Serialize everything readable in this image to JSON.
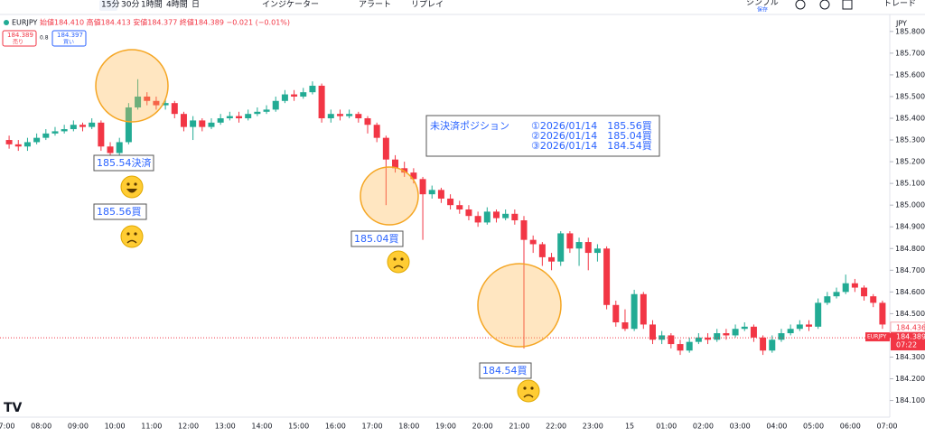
{
  "toolbar": {
    "timeframes": [
      "15分",
      "30分",
      "1時間",
      "4時間",
      "日"
    ],
    "indicators": "インジケーター",
    "alert": "アラート",
    "replay": "リプレイ",
    "layout": "シンプル",
    "save": "保存",
    "trade": "トレード"
  },
  "header": {
    "symbol": "EURJPY",
    "ohlc": "始値184.410 高値184.413 安値184.377 終値184.389 −0.021 (−0.01%)",
    "sell_price": "184.389",
    "sell": "売り",
    "spread": "0.8",
    "buy_price": "184.397",
    "buy": "買い"
  },
  "annotations": {
    "close1": "185.54決済",
    "buy1": "185.56買",
    "buy2": "185.04買",
    "buy3": "184.54買",
    "position_title": "未決済ポジション",
    "positions": [
      "①2026/01/14　185.56買",
      "②2026/01/14　185.04買",
      "③2026/01/14　184.54買"
    ]
  },
  "chart_data": {
    "type": "candlestick",
    "currency": "JPY",
    "up_color": "#22ab94",
    "down_color": "#f23645",
    "ylim": [
      184.04,
      185.87
    ],
    "yticks": [
      {
        "value": 184.1,
        "label": "184.100"
      },
      {
        "value": 184.2,
        "label": "184.200"
      },
      {
        "value": 184.3,
        "label": "184.300"
      },
      {
        "value": 184.4,
        "label": "184.400"
      },
      {
        "value": 184.5,
        "label": "184.500"
      },
      {
        "value": 184.6,
        "label": "184.600"
      },
      {
        "value": 184.7,
        "label": "184.700"
      },
      {
        "value": 184.8,
        "label": "184.800"
      },
      {
        "value": 184.9,
        "label": "184.900"
      },
      {
        "value": 185.0,
        "label": "185.000"
      },
      {
        "value": 185.1,
        "label": "185.100"
      },
      {
        "value": 185.2,
        "label": "185.200"
      },
      {
        "value": 185.3,
        "label": "185.300"
      },
      {
        "value": 185.4,
        "label": "185.400"
      },
      {
        "value": 185.5,
        "label": "185.500"
      },
      {
        "value": 185.6,
        "label": "185.600"
      },
      {
        "value": 185.7,
        "label": "185.700"
      },
      {
        "value": 185.8,
        "label": "185.800"
      }
    ],
    "x_labels": [
      "07:00",
      "08:00",
      "09:00",
      "10:00",
      "11:00",
      "12:00",
      "13:00",
      "14:00",
      "15:00",
      "16:00",
      "17:00",
      "18:00",
      "19:00",
      "20:00",
      "21:00",
      "22:00",
      "23:00",
      "15",
      "01:00",
      "02:00",
      "03:00",
      "04:00",
      "05:00",
      "06:00",
      "07:00"
    ],
    "price_lines": [
      {
        "value": 184.436,
        "label": "184.436"
      },
      {
        "value": 184.389,
        "label": "184.389",
        "name": "EURJPY",
        "time": "07:22"
      }
    ],
    "candles": [
      [
        185.3,
        185.32,
        185.26,
        185.28
      ],
      [
        185.28,
        185.3,
        185.25,
        185.27
      ],
      [
        185.27,
        185.31,
        185.25,
        185.29
      ],
      [
        185.29,
        185.33,
        185.28,
        185.31
      ],
      [
        185.31,
        185.35,
        185.3,
        185.33
      ],
      [
        185.33,
        185.36,
        185.32,
        185.34
      ],
      [
        185.34,
        185.37,
        185.33,
        185.35
      ],
      [
        185.35,
        185.39,
        185.34,
        185.37
      ],
      [
        185.37,
        185.38,
        185.34,
        185.36
      ],
      [
        185.36,
        185.4,
        185.35,
        185.38
      ],
      [
        185.38,
        185.39,
        185.25,
        185.27
      ],
      [
        185.27,
        185.29,
        185.22,
        185.24
      ],
      [
        185.24,
        185.31,
        185.23,
        185.29
      ],
      [
        185.29,
        185.47,
        185.28,
        185.45
      ],
      [
        185.45,
        185.58,
        185.44,
        185.5
      ],
      [
        185.5,
        185.52,
        185.46,
        185.48
      ],
      [
        185.48,
        185.5,
        185.44,
        185.46
      ],
      [
        185.46,
        185.49,
        185.44,
        185.47
      ],
      [
        185.47,
        185.48,
        185.4,
        185.42
      ],
      [
        185.42,
        185.43,
        185.34,
        185.36
      ],
      [
        185.36,
        185.41,
        185.3,
        185.39
      ],
      [
        185.39,
        185.4,
        185.34,
        185.36
      ],
      [
        185.36,
        185.4,
        185.35,
        185.38
      ],
      [
        185.38,
        185.42,
        185.37,
        185.4
      ],
      [
        185.4,
        185.43,
        185.39,
        185.41
      ],
      [
        185.41,
        185.43,
        185.38,
        185.4
      ],
      [
        185.4,
        185.44,
        185.39,
        185.42
      ],
      [
        185.42,
        185.45,
        185.41,
        185.43
      ],
      [
        185.43,
        185.46,
        185.42,
        185.44
      ],
      [
        185.44,
        185.5,
        185.43,
        185.48
      ],
      [
        185.48,
        185.53,
        185.47,
        185.51
      ],
      [
        185.51,
        185.53,
        185.48,
        185.5
      ],
      [
        185.5,
        185.54,
        185.49,
        185.52
      ],
      [
        185.52,
        185.57,
        185.51,
        185.55
      ],
      [
        185.55,
        185.56,
        185.38,
        185.4
      ],
      [
        185.4,
        185.44,
        185.38,
        185.42
      ],
      [
        185.42,
        185.44,
        185.39,
        185.41
      ],
      [
        185.41,
        185.44,
        185.4,
        185.42
      ],
      [
        185.42,
        185.43,
        185.38,
        185.4
      ],
      [
        185.4,
        185.41,
        185.33,
        185.37
      ],
      [
        185.37,
        185.38,
        185.29,
        185.31
      ],
      [
        185.31,
        185.32,
        185.0,
        185.21
      ],
      [
        185.21,
        185.23,
        185.15,
        185.17
      ],
      [
        185.17,
        185.2,
        185.13,
        185.15
      ],
      [
        185.15,
        185.17,
        185.1,
        185.12
      ],
      [
        185.12,
        185.13,
        184.84,
        185.05
      ],
      [
        185.05,
        185.09,
        185.03,
        185.07
      ],
      [
        185.07,
        185.08,
        185.01,
        185.03
      ],
      [
        185.03,
        185.05,
        184.98,
        185.0
      ],
      [
        185.0,
        185.02,
        184.96,
        184.98
      ],
      [
        184.98,
        185.0,
        184.93,
        184.95
      ],
      [
        184.95,
        184.97,
        184.9,
        184.92
      ],
      [
        184.92,
        184.99,
        184.91,
        184.97
      ],
      [
        184.97,
        184.98,
        184.92,
        184.94
      ],
      [
        184.94,
        184.98,
        184.93,
        184.96
      ],
      [
        184.96,
        184.98,
        184.91,
        184.93
      ],
      [
        184.93,
        184.95,
        184.34,
        184.84
      ],
      [
        184.84,
        184.86,
        184.78,
        184.82
      ],
      [
        184.82,
        184.83,
        184.72,
        184.76
      ],
      [
        184.76,
        184.78,
        184.7,
        184.74
      ],
      [
        184.74,
        184.88,
        184.72,
        184.87
      ],
      [
        184.87,
        184.88,
        184.78,
        184.8
      ],
      [
        184.8,
        184.85,
        184.72,
        184.83
      ],
      [
        184.83,
        184.85,
        184.7,
        184.78
      ],
      [
        184.78,
        184.82,
        184.74,
        184.8
      ],
      [
        184.8,
        184.81,
        184.52,
        184.54
      ],
      [
        184.54,
        184.56,
        184.44,
        184.46
      ],
      [
        184.46,
        184.52,
        184.42,
        184.43
      ],
      [
        184.43,
        184.61,
        184.42,
        184.59
      ],
      [
        184.59,
        184.6,
        184.43,
        184.45
      ],
      [
        184.45,
        184.47,
        184.36,
        184.38
      ],
      [
        184.38,
        184.42,
        184.36,
        184.4
      ],
      [
        184.4,
        184.41,
        184.34,
        184.36
      ],
      [
        184.36,
        184.38,
        184.31,
        184.33
      ],
      [
        184.33,
        184.39,
        184.32,
        184.37
      ],
      [
        184.37,
        184.41,
        184.36,
        184.39
      ],
      [
        184.39,
        184.41,
        184.36,
        184.38
      ],
      [
        184.38,
        184.43,
        184.37,
        184.41
      ],
      [
        184.41,
        184.43,
        184.38,
        184.4
      ],
      [
        184.4,
        184.45,
        184.39,
        184.43
      ],
      [
        184.43,
        184.46,
        184.42,
        184.44
      ],
      [
        184.44,
        184.45,
        184.37,
        184.39
      ],
      [
        184.39,
        184.4,
        184.31,
        184.33
      ],
      [
        184.33,
        184.4,
        184.32,
        184.38
      ],
      [
        184.38,
        184.43,
        184.37,
        184.41
      ],
      [
        184.41,
        184.45,
        184.4,
        184.43
      ],
      [
        184.43,
        184.47,
        184.42,
        184.45
      ],
      [
        184.45,
        184.47,
        184.42,
        184.44
      ],
      [
        184.44,
        184.57,
        184.43,
        184.55
      ],
      [
        184.55,
        184.6,
        184.54,
        184.58
      ],
      [
        184.58,
        184.62,
        184.57,
        184.6
      ],
      [
        184.6,
        184.68,
        184.59,
        184.64
      ],
      [
        184.64,
        184.66,
        184.6,
        184.62
      ],
      [
        184.62,
        184.63,
        184.56,
        184.58
      ],
      [
        184.58,
        184.59,
        184.53,
        184.55
      ],
      [
        184.55,
        184.56,
        184.43,
        184.45
      ],
      [
        184.41,
        184.413,
        184.377,
        184.389
      ]
    ]
  }
}
